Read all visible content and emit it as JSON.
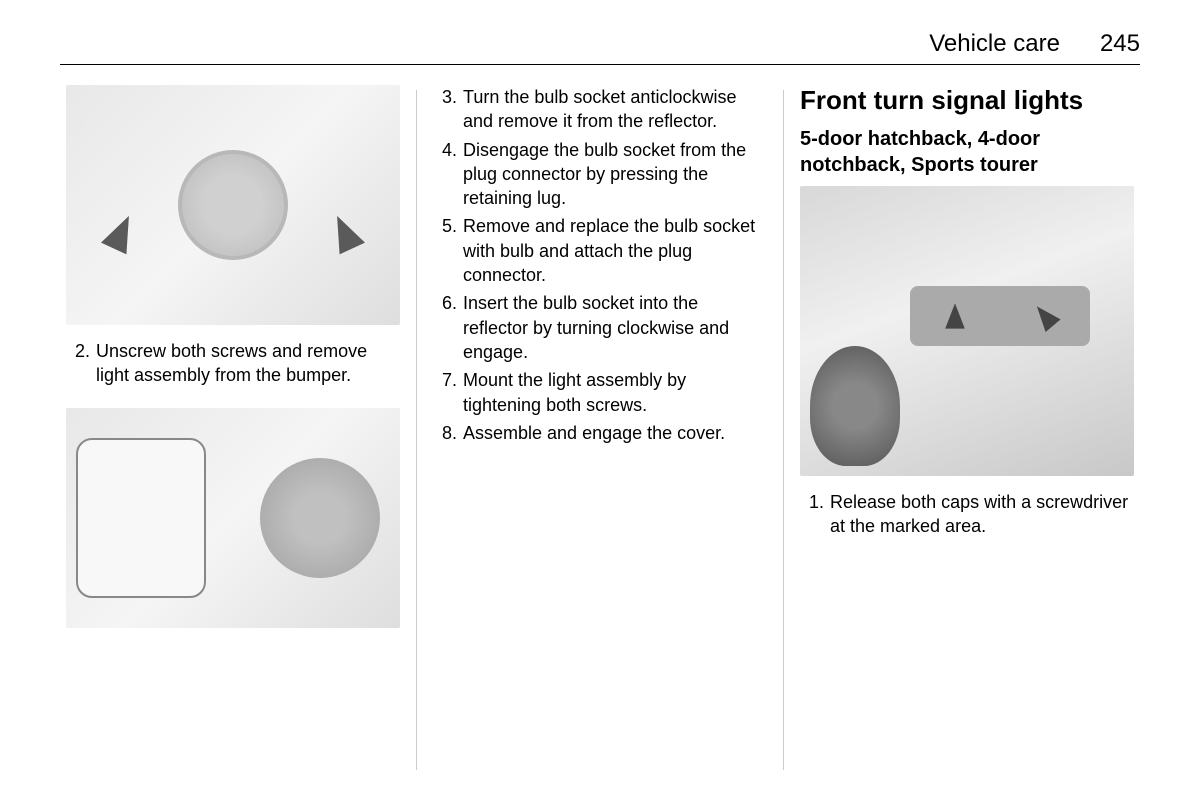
{
  "header": {
    "section": "Vehicle care",
    "page": "245"
  },
  "column1": {
    "steps": [
      {
        "num": "2.",
        "text": "Unscrew both screws and remove light assembly from the bumper."
      }
    ]
  },
  "column2": {
    "steps": [
      {
        "num": "3.",
        "text": "Turn the bulb socket anticlockwise and remove it from the reflector."
      },
      {
        "num": "4.",
        "text": "Disengage the bulb socket from the plug connector by pressing the retaining lug."
      },
      {
        "num": "5.",
        "text": "Remove and replace the bulb socket with bulb and attach the plug connector."
      },
      {
        "num": "6.",
        "text": "Insert the bulb socket into the reflector by turning clockwise and engage."
      },
      {
        "num": "7.",
        "text": "Mount the light assembly by tightening both screws."
      },
      {
        "num": "8.",
        "text": "Assemble and engage the cover."
      }
    ]
  },
  "column3": {
    "heading": "Front turn signal lights",
    "subheading": "5-door hatchback, 4-door notchback, Sports tourer",
    "steps": [
      {
        "num": "1.",
        "text": "Release both caps with a screwdriver at the marked area."
      }
    ]
  },
  "styles": {
    "body_font": "Arial",
    "text_color": "#000000",
    "bg_color": "#ffffff",
    "divider_color": "#cccccc",
    "section_title_fontsize": 24,
    "page_number_fontsize": 24,
    "h2_fontsize": 26,
    "h3_fontsize": 20,
    "body_fontsize": 18
  }
}
